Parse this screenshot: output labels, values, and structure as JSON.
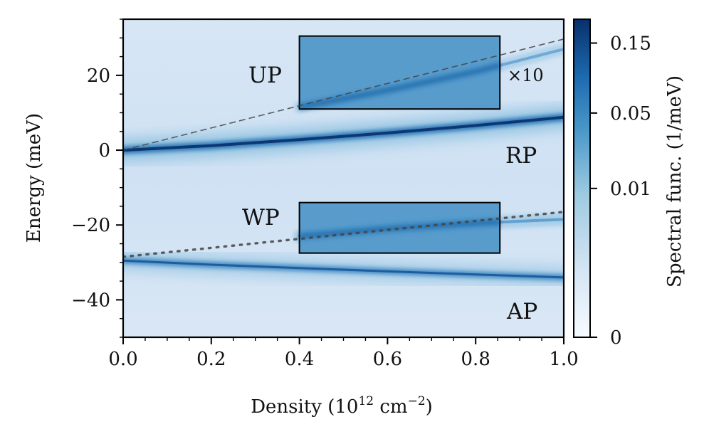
{
  "chart_data": {
    "type": "heatmap",
    "xlabel": "Density (10",
    "xlabel_sup": "12",
    "xlabel_unit": " cm",
    "xlabel_unit_sup": "−2",
    "xlabel_close": ")",
    "ylabel": "Energy (meV)",
    "xlim": [
      0,
      1.0
    ],
    "ylim": [
      -50,
      35
    ],
    "x_ticks": [
      {
        "value": 0.0,
        "label": "0.0"
      },
      {
        "value": 0.2,
        "label": "0.2"
      },
      {
        "value": 0.4,
        "label": "0.4"
      },
      {
        "value": 0.6,
        "label": "0.6"
      },
      {
        "value": 0.8,
        "label": "0.8"
      },
      {
        "value": 1.0,
        "label": "1.0"
      }
    ],
    "y_ticks": [
      {
        "value": 20,
        "label": "20"
      },
      {
        "value": 0,
        "label": "0"
      },
      {
        "value": -20,
        "label": "−20"
      },
      {
        "value": -40,
        "label": "−40"
      }
    ],
    "colorbar": {
      "label": "Spectral func. (1/meV)",
      "ticks": [
        {
          "value": 0.15,
          "label": "0.15"
        },
        {
          "value": 0.05,
          "label": "0.05"
        },
        {
          "value": 0.01,
          "label": "0.01"
        },
        {
          "value": 0,
          "label": "0"
        }
      ],
      "colormap": [
        "#f7fbff",
        "#deebf7",
        "#c6dbef",
        "#9ecae1",
        "#6baed6",
        "#4292c6",
        "#2171b5",
        "#08519c",
        "#08306b"
      ]
    },
    "series": [
      {
        "name": "RP",
        "x": [
          0,
          0.2,
          0.4,
          0.6,
          0.8,
          1.0
        ],
        "y": [
          0,
          1.2,
          2.8,
          4.6,
          6.6,
          8.8
        ]
      },
      {
        "name": "AP",
        "x": [
          0,
          0.2,
          0.4,
          0.6,
          0.8,
          1.0
        ],
        "y": [
          -29.5,
          -30.6,
          -31.5,
          -32.4,
          -33.2,
          -34.0
        ]
      },
      {
        "name": "UP",
        "x": [
          0.4,
          0.6,
          0.8,
          1.0
        ],
        "y": [
          11.5,
          16.0,
          21.0,
          27.0
        ]
      },
      {
        "name": "WP",
        "x": [
          0.4,
          0.6,
          0.8,
          1.0
        ],
        "y": [
          -23.0,
          -21.0,
          -19.5,
          -18.5
        ]
      }
    ],
    "reference_lines": [
      {
        "style": "dashed",
        "x": [
          0,
          1.0
        ],
        "y": [
          0,
          29.7
        ]
      },
      {
        "style": "dotted",
        "x": [
          0,
          1.0
        ],
        "y": [
          -28.5,
          -16.5
        ]
      }
    ],
    "boxes": [
      {
        "name": "UP-box",
        "x": [
          0.4,
          0.855
        ],
        "y": [
          11,
          30.5
        ]
      },
      {
        "name": "WP-box",
        "x": [
          0.4,
          0.855
        ],
        "y": [
          -27.5,
          -14
        ]
      }
    ],
    "annotations": {
      "up": "UP",
      "times10": "×10",
      "rp": "RP",
      "wp": "WP",
      "ap": "AP"
    }
  }
}
